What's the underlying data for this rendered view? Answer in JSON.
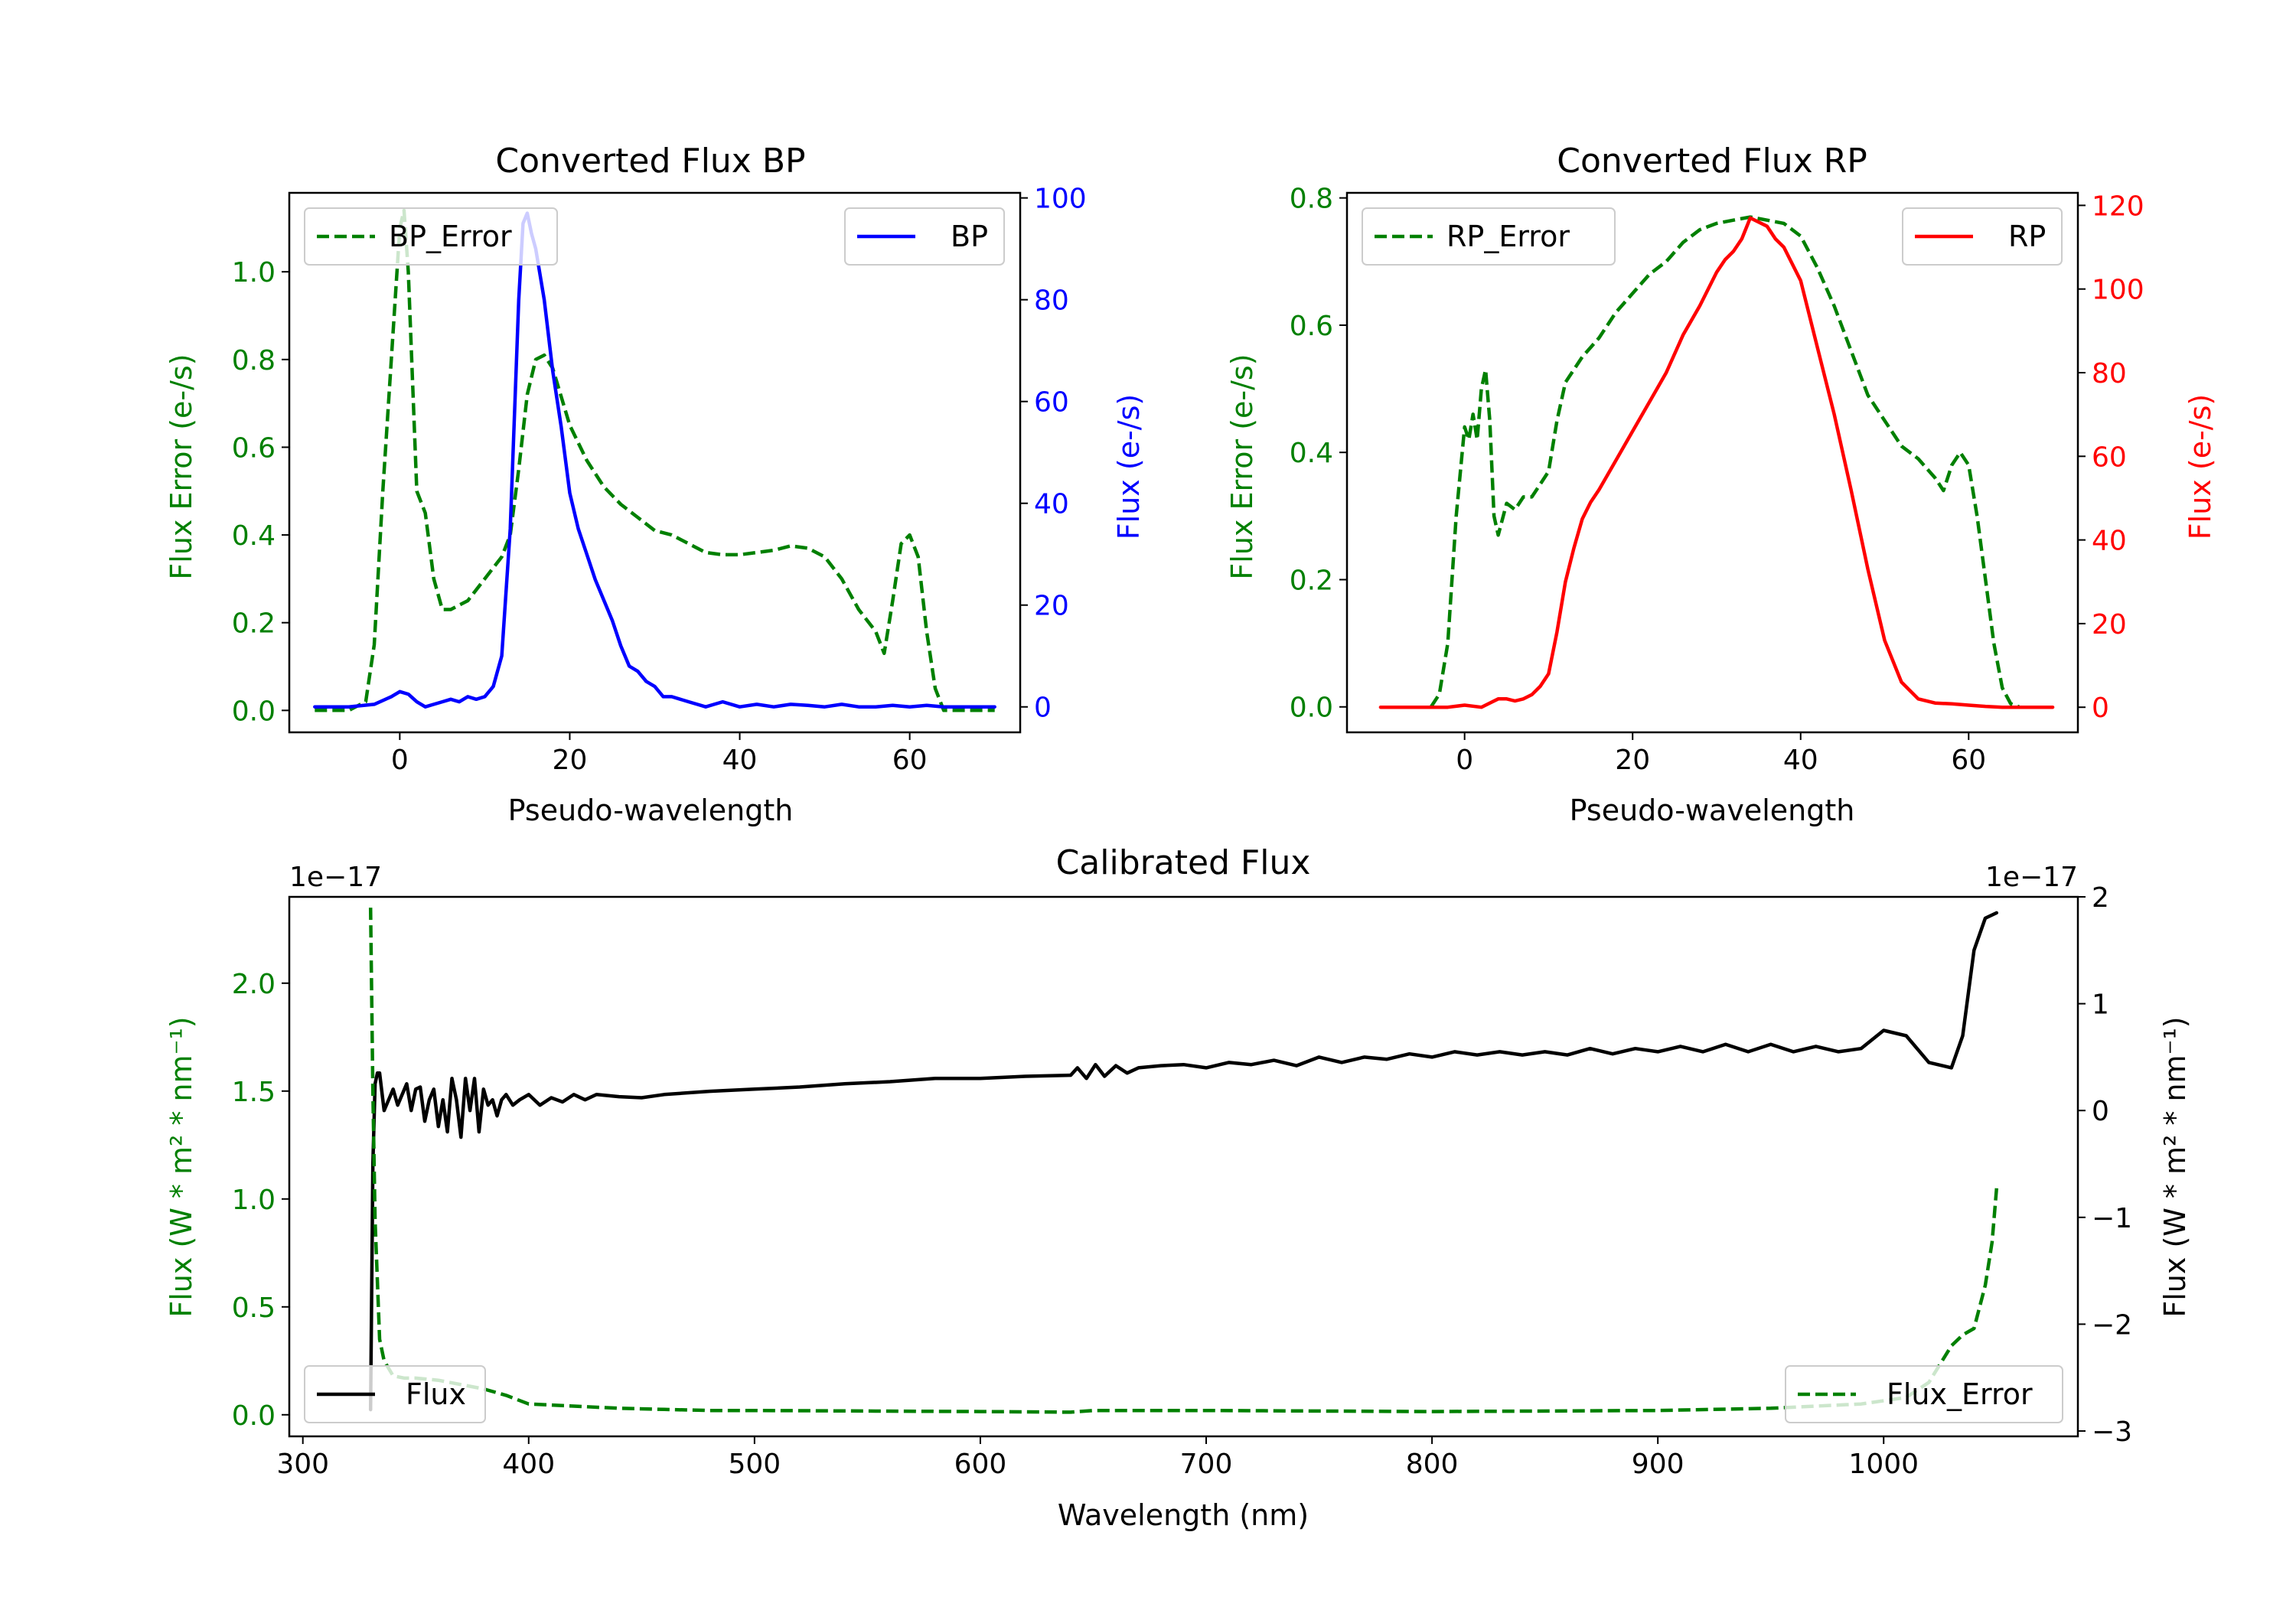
{
  "figure": {
    "background": "#ffffff"
  },
  "colors": {
    "error": "#008000",
    "bp": "#0000ff",
    "rp": "#ff0000",
    "flux": "#000000",
    "axis": "#000000"
  },
  "chart_data": [
    {
      "id": "bp",
      "type": "line",
      "title": "Converted Flux BP",
      "xlabel": "Pseudo-wavelength",
      "ylabel_left": "Flux Error (e-/s)",
      "ylabel_right": "Flux (e-/s)",
      "xlim": [
        -13,
        73
      ],
      "ylim_left": [
        -0.05,
        1.18
      ],
      "ylim_right": [
        -5,
        101
      ],
      "xticks": [
        0,
        20,
        40,
        60
      ],
      "xtick_labels": [
        "0",
        "20",
        "40",
        "60"
      ],
      "yticks_left": [
        0.0,
        0.2,
        0.4,
        0.6,
        0.8,
        1.0
      ],
      "ytick_labels_left": [
        "0.0",
        "0.2",
        "0.4",
        "0.6",
        "0.8",
        "1.0"
      ],
      "yticks_right": [
        0,
        20,
        40,
        60,
        80,
        100
      ],
      "ytick_labels_right": [
        "0",
        "20",
        "40",
        "60",
        "80",
        "100"
      ],
      "legend_left": {
        "label": "BP_Error",
        "position": "upper left"
      },
      "legend_right": {
        "label": "BP",
        "position": "upper right"
      },
      "series": [
        {
          "name": "BP_Error",
          "axis": "left",
          "color": "#008000",
          "style": "dashed",
          "x": [
            -10,
            -8,
            -6,
            -4,
            -3,
            -2,
            -1,
            0,
            0.5,
            1,
            2,
            3,
            4,
            5,
            6,
            8,
            10,
            12,
            13,
            14,
            15,
            16,
            17,
            18,
            20,
            22,
            24,
            26,
            28,
            30,
            32,
            34,
            36,
            38,
            40,
            42,
            44,
            46,
            48,
            50,
            52,
            54,
            56,
            57,
            58,
            59,
            60,
            61,
            62,
            63,
            64,
            66,
            68,
            70
          ],
          "y": [
            0,
            0,
            0,
            0.02,
            0.15,
            0.5,
            0.8,
            1.1,
            1.14,
            1.0,
            0.5,
            0.45,
            0.3,
            0.23,
            0.23,
            0.25,
            0.3,
            0.35,
            0.4,
            0.55,
            0.72,
            0.8,
            0.81,
            0.78,
            0.65,
            0.57,
            0.51,
            0.47,
            0.44,
            0.41,
            0.4,
            0.38,
            0.36,
            0.355,
            0.355,
            0.36,
            0.365,
            0.375,
            0.37,
            0.35,
            0.3,
            0.23,
            0.18,
            0.13,
            0.25,
            0.38,
            0.4,
            0.35,
            0.18,
            0.05,
            0,
            0,
            0,
            0
          ]
        },
        {
          "name": "BP",
          "axis": "right",
          "color": "#0000ff",
          "style": "solid",
          "x": [
            -10,
            -6,
            -3,
            -1,
            0,
            1,
            2,
            3,
            4,
            5,
            6,
            7,
            8,
            9,
            10,
            11,
            12,
            13,
            14,
            14.5,
            15,
            15.5,
            16,
            17,
            18,
            19,
            20,
            21,
            22,
            23,
            24,
            25,
            26,
            27,
            28,
            29,
            30,
            31,
            32,
            34,
            35,
            36,
            37,
            38,
            40,
            42,
            44,
            46,
            48,
            50,
            52,
            54,
            56,
            58,
            60,
            62,
            64,
            66,
            70
          ],
          "y": [
            0,
            0,
            0.5,
            2,
            3,
            2.5,
            1,
            0,
            0.5,
            1,
            1.5,
            1,
            2,
            1.5,
            2,
            4,
            10,
            35,
            80,
            95,
            97,
            93,
            90,
            80,
            66,
            55,
            42,
            35,
            30,
            25,
            21,
            17,
            12,
            8,
            7,
            5,
            4,
            2,
            2,
            1,
            0.5,
            0,
            0.5,
            1,
            0,
            0.5,
            0,
            0.5,
            0.3,
            0,
            0.5,
            0,
            0,
            0.3,
            0,
            0.3,
            0,
            0,
            0
          ]
        }
      ]
    },
    {
      "id": "rp",
      "type": "line",
      "title": "Converted Flux RP",
      "xlabel": "Pseudo-wavelength",
      "ylabel_left": "Flux Error (e-/s)",
      "ylabel_right": "Flux (e-/s)",
      "xlim": [
        -14,
        73
      ],
      "ylim_left": [
        -0.04,
        0.808
      ],
      "ylim_right": [
        -6,
        123
      ],
      "xticks": [
        0,
        20,
        40,
        60
      ],
      "xtick_labels": [
        "0",
        "20",
        "40",
        "60"
      ],
      "yticks_left": [
        0.0,
        0.2,
        0.4,
        0.6,
        0.8
      ],
      "ytick_labels_left": [
        "0.0",
        "0.2",
        "0.4",
        "0.6",
        "0.8"
      ],
      "yticks_right": [
        0,
        20,
        40,
        60,
        80,
        100,
        120
      ],
      "ytick_labels_right": [
        "0",
        "20",
        "40",
        "60",
        "80",
        "100",
        "120"
      ],
      "legend_left": {
        "label": "RP_Error",
        "position": "upper left"
      },
      "legend_right": {
        "label": "RP",
        "position": "upper right"
      },
      "series": [
        {
          "name": "RP_Error",
          "axis": "left",
          "color": "#008000",
          "style": "dashed",
          "x": [
            -4,
            -3,
            -2,
            -1,
            0,
            0.5,
            1,
            1.5,
            2,
            2.5,
            3,
            3.5,
            4,
            5,
            6,
            7,
            8,
            9,
            10,
            11,
            12,
            14,
            16,
            18,
            20,
            22,
            24,
            26,
            28,
            30,
            32,
            34,
            36,
            38,
            40,
            42,
            44,
            46,
            48,
            50,
            52,
            54,
            56,
            57,
            58,
            59,
            60,
            61,
            62,
            63,
            64,
            65,
            66
          ],
          "y": [
            0,
            0.02,
            0.1,
            0.3,
            0.44,
            0.42,
            0.46,
            0.42,
            0.5,
            0.53,
            0.45,
            0.3,
            0.27,
            0.32,
            0.31,
            0.33,
            0.33,
            0.35,
            0.37,
            0.45,
            0.51,
            0.55,
            0.58,
            0.62,
            0.65,
            0.68,
            0.7,
            0.73,
            0.75,
            0.76,
            0.765,
            0.77,
            0.765,
            0.76,
            0.74,
            0.69,
            0.63,
            0.56,
            0.49,
            0.45,
            0.41,
            0.39,
            0.36,
            0.34,
            0.38,
            0.4,
            0.38,
            0.3,
            0.2,
            0.1,
            0.03,
            0.005,
            0
          ]
        },
        {
          "name": "RP",
          "axis": "right",
          "color": "#ff0000",
          "style": "solid",
          "x": [
            -10,
            -4,
            -2,
            0,
            2,
            3,
            4,
            5,
            6,
            7,
            8,
            9,
            10,
            11,
            12,
            13,
            14,
            15,
            16,
            18,
            20,
            22,
            24,
            26,
            28,
            30,
            31,
            32,
            33,
            34,
            35,
            36,
            37,
            38,
            40,
            42,
            44,
            46,
            48,
            50,
            52,
            54,
            56,
            58,
            60,
            62,
            64,
            66,
            70
          ],
          "y": [
            0,
            0,
            0,
            0.5,
            0,
            1,
            2,
            2,
            1.5,
            2,
            3,
            5,
            8,
            18,
            30,
            38,
            45,
            49,
            52,
            59,
            66,
            73,
            80,
            89,
            96,
            104,
            107,
            109,
            112,
            117,
            116,
            115,
            112,
            110,
            102,
            86,
            70,
            52,
            33,
            16,
            6,
            2,
            1,
            0.8,
            0.5,
            0.2,
            0,
            0,
            0
          ]
        }
      ]
    },
    {
      "id": "cal",
      "type": "line",
      "title": "Calibrated Flux",
      "xlabel": "Wavelength (nm)",
      "ylabel_left": "Flux (W * m² * nm⁻¹)",
      "ylabel_right": "Flux (W * m² * nm⁻¹)",
      "offset_left": "1e−17",
      "offset_right": "1e−17",
      "xlim": [
        294,
        1086
      ],
      "ylim_left": [
        -0.1,
        2.4
      ],
      "ylim_right": [
        -3.05,
        2.0
      ],
      "xticks": [
        300,
        400,
        500,
        600,
        700,
        800,
        900,
        1000
      ],
      "xtick_labels": [
        "300",
        "400",
        "500",
        "600",
        "700",
        "800",
        "900",
        "1000"
      ],
      "yticks_left": [
        0.0,
        0.5,
        1.0,
        1.5,
        2.0
      ],
      "ytick_labels_left": [
        "0.0",
        "0.5",
        "1.0",
        "1.5",
        "2.0"
      ],
      "yticks_right": [
        -3,
        -2,
        -1,
        0,
        1,
        2
      ],
      "ytick_labels_right": [
        "−3",
        "−2",
        "−1",
        "0",
        "1",
        "2"
      ],
      "legend_left": {
        "label": "Flux",
        "position": "lower left"
      },
      "legend_right": {
        "label": "Flux_Error",
        "position": "lower right"
      },
      "series": [
        {
          "name": "Flux",
          "axis": "right",
          "color": "#000000",
          "style": "solid",
          "x": [
            330,
            331,
            332,
            333,
            334,
            336,
            338,
            340,
            342,
            344,
            346,
            348,
            350,
            352,
            354,
            356,
            358,
            360,
            362,
            364,
            366,
            368,
            370,
            372,
            374,
            376,
            378,
            380,
            382,
            384,
            386,
            388,
            390,
            393,
            396,
            400,
            405,
            410,
            415,
            420,
            425,
            430,
            440,
            450,
            460,
            480,
            500,
            520,
            540,
            560,
            580,
            600,
            620,
            640,
            643,
            647,
            651,
            655,
            660,
            665,
            670,
            680,
            690,
            700,
            710,
            720,
            730,
            740,
            750,
            760,
            770,
            780,
            790,
            800,
            810,
            820,
            830,
            840,
            850,
            860,
            870,
            880,
            890,
            900,
            910,
            920,
            930,
            940,
            950,
            960,
            970,
            980,
            990,
            1000,
            1010,
            1020,
            1030,
            1035,
            1040,
            1045,
            1050
          ],
          "y": [
            -2.8,
            -0.5,
            0.25,
            0.35,
            0.35,
            0.0,
            0.1,
            0.2,
            0.05,
            0.15,
            0.25,
            0.0,
            0.2,
            0.22,
            -0.1,
            0.1,
            0.2,
            -0.15,
            0.1,
            -0.2,
            0.3,
            0.1,
            -0.25,
            0.3,
            0.0,
            0.3,
            -0.2,
            0.2,
            0.05,
            0.1,
            -0.05,
            0.1,
            0.15,
            0.05,
            0.1,
            0.15,
            0.05,
            0.12,
            0.08,
            0.15,
            0.1,
            0.15,
            0.13,
            0.12,
            0.15,
            0.18,
            0.2,
            0.22,
            0.25,
            0.27,
            0.3,
            0.3,
            0.32,
            0.33,
            0.4,
            0.3,
            0.43,
            0.32,
            0.42,
            0.35,
            0.4,
            0.42,
            0.43,
            0.4,
            0.45,
            0.43,
            0.47,
            0.42,
            0.5,
            0.45,
            0.5,
            0.48,
            0.53,
            0.5,
            0.55,
            0.52,
            0.55,
            0.52,
            0.55,
            0.52,
            0.58,
            0.53,
            0.58,
            0.55,
            0.6,
            0.55,
            0.62,
            0.55,
            0.62,
            0.55,
            0.6,
            0.55,
            0.58,
            0.75,
            0.7,
            0.45,
            0.4,
            0.7,
            1.5,
            1.8,
            1.85
          ]
        },
        {
          "name": "Flux_Error",
          "axis": "left",
          "color": "#008000",
          "style": "dashed",
          "x": [
            330,
            331,
            332,
            334,
            336,
            340,
            345,
            350,
            360,
            370,
            380,
            390,
            400,
            420,
            440,
            460,
            480,
            500,
            600,
            640,
            650,
            700,
            800,
            900,
            950,
            990,
            1010,
            1020,
            1030,
            1035,
            1040,
            1045,
            1048,
            1050
          ],
          "y": [
            2.35,
            1.5,
            0.9,
            0.35,
            0.25,
            0.18,
            0.17,
            0.17,
            0.16,
            0.14,
            0.12,
            0.09,
            0.05,
            0.04,
            0.03,
            0.025,
            0.02,
            0.02,
            0.015,
            0.012,
            0.02,
            0.02,
            0.015,
            0.02,
            0.03,
            0.05,
            0.08,
            0.15,
            0.32,
            0.37,
            0.4,
            0.6,
            0.8,
            1.05
          ]
        }
      ]
    }
  ]
}
